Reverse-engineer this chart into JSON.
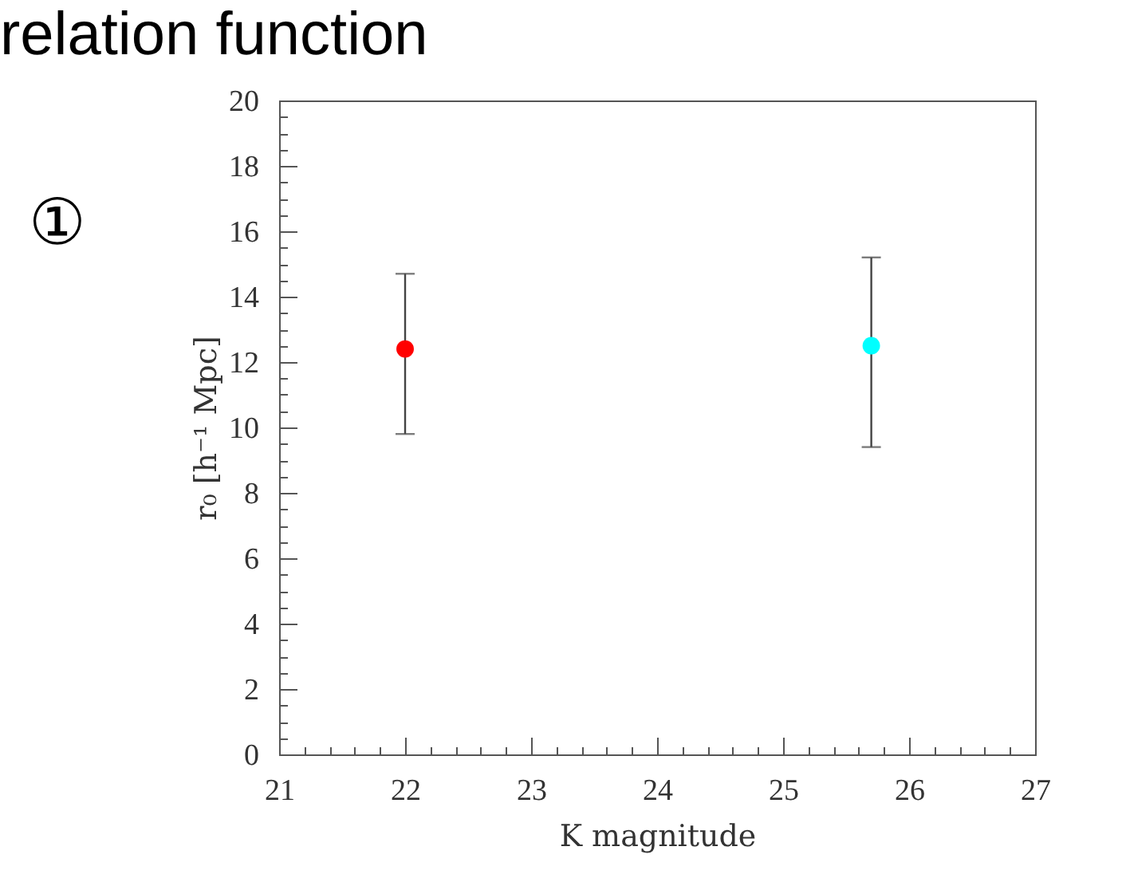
{
  "chart_data": {
    "type": "scatter",
    "title": "relation function",
    "annotations": [
      "①"
    ],
    "xlabel": "K magnitude",
    "ylabel": "r₀ [h⁻¹ Mpc]",
    "x": [
      22,
      25.7
    ],
    "values": [
      12.4,
      12.5
    ],
    "colors": [
      "#ff0000",
      "#00ffff"
    ],
    "errors": [
      [
        9.8,
        14.7
      ],
      [
        9.4,
        15.2
      ]
    ],
    "marker": "circle",
    "xlim": [
      21,
      27
    ],
    "ylim": [
      0,
      20
    ],
    "xticks": [
      21,
      {
        "value": 21.2,
        "label": null
      },
      {
        "value": 21.4,
        "label": null
      },
      {
        "value": 21.6,
        "label": null
      },
      {
        "value": 21.8,
        "label": null
      },
      22,
      {
        "value": 22.2,
        "label": null
      },
      {
        "value": 22.4,
        "label": null
      },
      {
        "value": 22.6,
        "label": null
      },
      {
        "value": 22.8,
        "label": null
      },
      23,
      {
        "value": 23.2,
        "label": null
      },
      {
        "value": 23.4,
        "label": null
      },
      {
        "value": 23.6,
        "label": null
      },
      {
        "value": 23.8,
        "label": null
      },
      24,
      {
        "value": 24.2,
        "label": null
      },
      {
        "value": 24.4,
        "label": null
      },
      {
        "value": 24.6,
        "label": null
      },
      {
        "value": 24.8,
        "label": null
      },
      25,
      {
        "value": 25.2,
        "label": null
      },
      {
        "value": 25.4,
        "label": null
      },
      {
        "value": 25.6,
        "label": null
      },
      {
        "value": 25.8,
        "label": null
      },
      26,
      {
        "value": 26.2,
        "label": null
      },
      {
        "value": 26.4,
        "label": null
      },
      {
        "value": 26.6,
        "label": null
      },
      {
        "value": 26.8,
        "label": null
      },
      27
    ],
    "yticks": [
      0,
      {
        "value": 0.5,
        "label": null
      },
      {
        "value": 1,
        "label": null
      },
      {
        "value": 1.5,
        "label": null
      },
      2,
      {
        "value": 2.5,
        "label": null
      },
      {
        "value": 3,
        "label": null
      },
      {
        "value": 3.5,
        "label": null
      },
      4,
      {
        "value": 4.5,
        "label": null
      },
      {
        "value": 5,
        "label": null
      },
      {
        "value": 5.5,
        "label": null
      },
      6,
      {
        "value": 6.5,
        "label": null
      },
      {
        "value": 7,
        "label": null
      },
      {
        "value": 7.5,
        "label": null
      },
      8,
      {
        "value": 8.5,
        "label": null
      },
      {
        "value": 9,
        "label": null
      },
      {
        "value": 9.5,
        "label": null
      },
      10,
      {
        "value": 10.5,
        "label": null
      },
      {
        "value": 11,
        "label": null
      },
      {
        "value": 11.5,
        "label": null
      },
      12,
      {
        "value": 12.5,
        "label": null
      },
      {
        "value": 13,
        "label": null
      },
      {
        "value": 13.5,
        "label": null
      },
      14,
      {
        "value": 14.5,
        "label": null
      },
      {
        "value": 15,
        "label": null
      },
      {
        "value": 15.5,
        "label": null
      },
      16,
      {
        "value": 16.5,
        "label": null
      },
      {
        "value": 17,
        "label": null
      },
      {
        "value": 17.5,
        "label": null
      },
      18,
      {
        "value": 18.5,
        "label": null
      },
      {
        "value": 19,
        "label": null
      },
      {
        "value": 19.5,
        "label": null
      },
      20
    ]
  }
}
